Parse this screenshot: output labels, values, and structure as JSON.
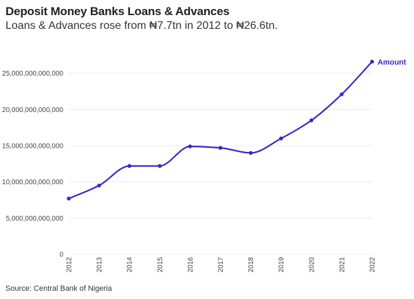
{
  "header": {
    "title": "Deposit Money Banks Loans & Advances",
    "subtitle": "Loans & Advances rose from ₦7.7tn in 2012 to ₦26.6tn."
  },
  "footer": {
    "source": "Source: Central Bank of Nigeria"
  },
  "colors": {
    "series": "#3f24c9",
    "grid": "#ececec",
    "axis_text": "#444444"
  },
  "chart_data": {
    "type": "line",
    "title": "Deposit Money Banks Loans & Advances",
    "xlabel": "",
    "ylabel": "",
    "categories": [
      "2012",
      "2013",
      "2014",
      "2015",
      "2016",
      "2017",
      "2018",
      "2019",
      "2020",
      "2021",
      "2022"
    ],
    "series": [
      {
        "name": "Amount",
        "values": [
          7700000000000,
          9500000000000,
          12200000000000,
          12200000000000,
          14900000000000,
          14700000000000,
          14000000000000,
          16000000000000,
          18500000000000,
          22100000000000,
          26600000000000
        ]
      }
    ],
    "ylim": [
      0,
      28000000000000
    ],
    "yticks": [
      0,
      5000000000000,
      10000000000000,
      15000000000000,
      20000000000000,
      25000000000000
    ],
    "ytick_labels": [
      "0",
      "5,000,000,000,000",
      "10,000,000,000,000",
      "15,000,000,000,000",
      "20,000,000,000,000",
      "25,000,000,000,000"
    ],
    "grid": true,
    "legend": "end-of-line label"
  }
}
